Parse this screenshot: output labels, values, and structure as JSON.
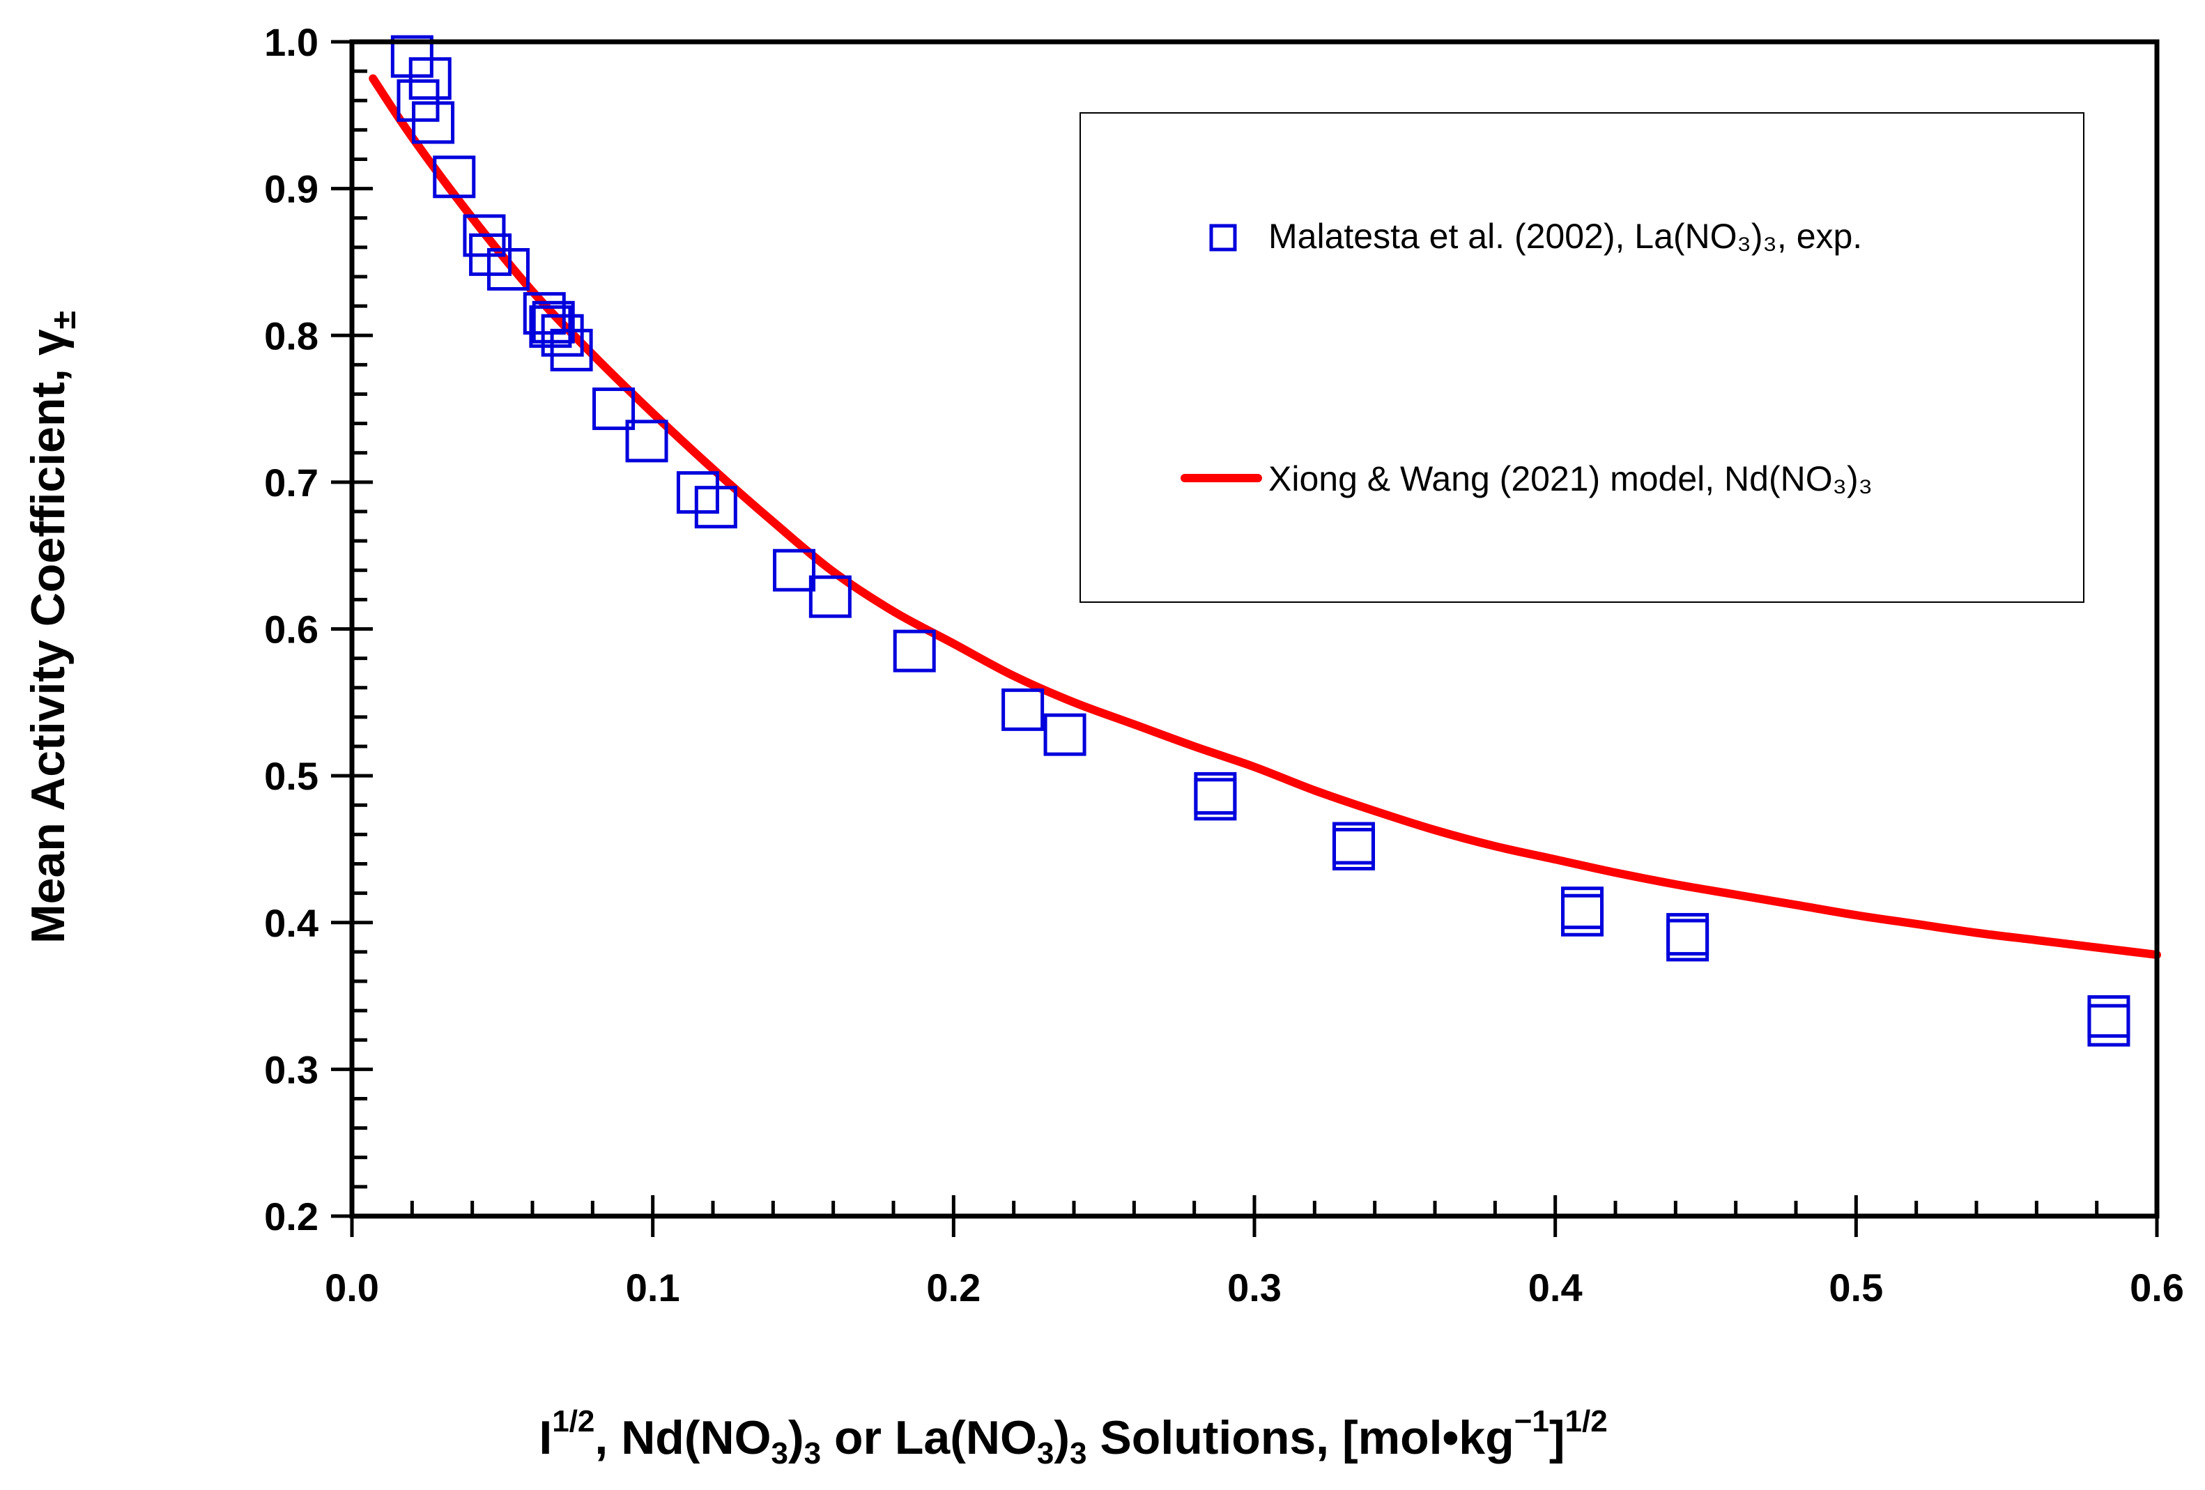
{
  "chart_data": {
    "type": "scatter",
    "xlabel": {
      "main": "I",
      "main_sup": "1/2",
      "rest1": ", Nd(NO",
      "sub1": "3",
      "rest2": ")",
      "sub2": "3",
      "rest3": " or La(NO",
      "sub3": "3",
      "rest4": ")",
      "sub4": "3",
      "rest5": " Solutions,  [mol•kg",
      "sup_unit": "−1",
      "rest6": "]",
      "sup_end": "1/2"
    },
    "ylabel": {
      "main": "Mean Activity Coefficient,  γ",
      "sub": "±"
    },
    "xlim": [
      0.0,
      0.6
    ],
    "ylim": [
      0.2,
      1.0
    ],
    "xticks": [
      "0.0",
      "0.1",
      "0.2",
      "0.3",
      "0.4",
      "0.5",
      "0.6"
    ],
    "xtick_values": [
      0.0,
      0.1,
      0.2,
      0.3,
      0.4,
      0.5,
      0.6
    ],
    "yticks": [
      "0.2",
      "0.3",
      "0.4",
      "0.5",
      "0.6",
      "0.7",
      "0.8",
      "0.9",
      "1.0"
    ],
    "ytick_values": [
      0.2,
      0.3,
      0.4,
      0.5,
      0.6,
      0.7,
      0.8,
      0.9,
      1.0
    ],
    "series": [
      {
        "name": "Malatesta et al. (2002), La(NO₃)₃, exp.",
        "kind": "scatter",
        "marker": "open-square",
        "color": "#0000dd",
        "points": [
          [
            0.02,
            0.99
          ],
          [
            0.022,
            0.96
          ],
          [
            0.026,
            0.975
          ],
          [
            0.027,
            0.945
          ],
          [
            0.034,
            0.908
          ],
          [
            0.044,
            0.868
          ],
          [
            0.046,
            0.855
          ],
          [
            0.052,
            0.845
          ],
          [
            0.064,
            0.815
          ],
          [
            0.066,
            0.806
          ],
          [
            0.067,
            0.809
          ],
          [
            0.07,
            0.8
          ],
          [
            0.073,
            0.79
          ],
          [
            0.087,
            0.75
          ],
          [
            0.098,
            0.728
          ],
          [
            0.115,
            0.693
          ],
          [
            0.121,
            0.683
          ],
          [
            0.147,
            0.64
          ],
          [
            0.159,
            0.622
          ],
          [
            0.187,
            0.585
          ],
          [
            0.223,
            0.545
          ],
          [
            0.237,
            0.528
          ],
          [
            0.287,
            0.488
          ],
          [
            0.287,
            0.484
          ],
          [
            0.333,
            0.454
          ],
          [
            0.333,
            0.45
          ],
          [
            0.409,
            0.41
          ],
          [
            0.409,
            0.405
          ],
          [
            0.444,
            0.392
          ],
          [
            0.444,
            0.388
          ],
          [
            0.584,
            0.336
          ],
          [
            0.584,
            0.33
          ]
        ]
      },
      {
        "name": "Xiong & Wang (2021) model, Nd(NO₃)₃",
        "kind": "line",
        "color": "#ff0000",
        "points": [
          [
            0.007,
            0.975
          ],
          [
            0.02,
            0.935
          ],
          [
            0.04,
            0.88
          ],
          [
            0.06,
            0.83
          ],
          [
            0.08,
            0.787
          ],
          [
            0.1,
            0.747
          ],
          [
            0.12,
            0.709
          ],
          [
            0.14,
            0.673
          ],
          [
            0.16,
            0.639
          ],
          [
            0.18,
            0.612
          ],
          [
            0.2,
            0.59
          ],
          [
            0.22,
            0.568
          ],
          [
            0.24,
            0.55
          ],
          [
            0.26,
            0.535
          ],
          [
            0.28,
            0.52
          ],
          [
            0.3,
            0.506
          ],
          [
            0.32,
            0.49
          ],
          [
            0.34,
            0.476
          ],
          [
            0.36,
            0.463
          ],
          [
            0.38,
            0.452
          ],
          [
            0.4,
            0.443
          ],
          [
            0.42,
            0.434
          ],
          [
            0.44,
            0.426
          ],
          [
            0.46,
            0.419
          ],
          [
            0.48,
            0.412
          ],
          [
            0.5,
            0.405
          ],
          [
            0.52,
            0.399
          ],
          [
            0.54,
            0.393
          ],
          [
            0.56,
            0.388
          ],
          [
            0.58,
            0.383
          ],
          [
            0.6,
            0.378
          ]
        ]
      }
    ],
    "legend": {
      "position": "top-right",
      "entries": [
        {
          "label": "Malatesta et al. (2002), La(NO₃)₃, exp.",
          "marker": "open-square",
          "color": "#0000dd"
        },
        {
          "label": "Xiong & Wang (2021) model, Nd(NO₃)₃",
          "marker": "line",
          "color": "#ff0000"
        }
      ]
    }
  }
}
